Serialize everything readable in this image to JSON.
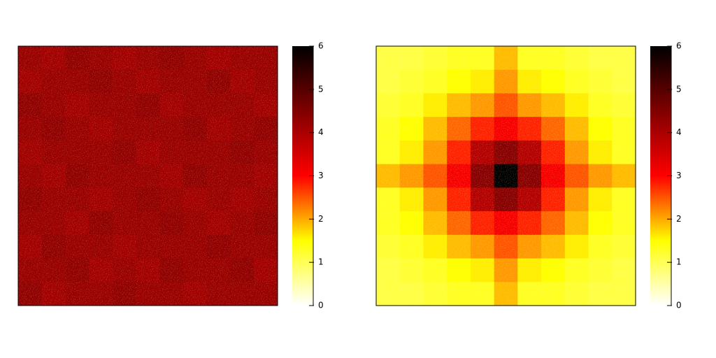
{
  "chart_data": [
    {
      "type": "heatmap",
      "clim": [
        0,
        6
      ],
      "cticks": [
        0,
        1,
        2,
        3,
        4,
        5,
        6
      ],
      "colormap": [
        "#ffffff",
        "#ffff00",
        "#ff0000",
        "#800000",
        "#000000"
      ],
      "values": [
        [
          4.2,
          4.1,
          4.3,
          4.2,
          4.1,
          4.2,
          4.3,
          4.2,
          4.1,
          4.2,
          4.2
        ],
        [
          4.1,
          4.2,
          4.2,
          4.3,
          4.2,
          4.1,
          4.2,
          4.2,
          4.3,
          4.1,
          4.2
        ],
        [
          4.3,
          4.2,
          4.1,
          4.2,
          4.2,
          4.3,
          4.1,
          4.2,
          4.2,
          4.2,
          4.1
        ],
        [
          4.2,
          4.3,
          4.2,
          4.1,
          4.2,
          4.2,
          4.2,
          4.3,
          4.1,
          4.2,
          4.3
        ],
        [
          4.1,
          4.2,
          4.2,
          4.2,
          4.3,
          4.1,
          4.2,
          4.2,
          4.2,
          4.3,
          4.2
        ],
        [
          4.2,
          4.1,
          4.3,
          4.2,
          4.2,
          4.2,
          4.1,
          4.3,
          4.2,
          4.2,
          4.1
        ],
        [
          4.3,
          4.2,
          4.2,
          4.1,
          4.2,
          4.3,
          4.2,
          4.1,
          4.2,
          4.1,
          4.2
        ],
        [
          4.2,
          4.2,
          4.1,
          4.3,
          4.2,
          4.2,
          4.3,
          4.2,
          4.1,
          4.2,
          4.3
        ],
        [
          4.1,
          4.3,
          4.2,
          4.2,
          4.1,
          4.2,
          4.2,
          4.2,
          4.3,
          4.2,
          4.2
        ],
        [
          4.2,
          4.2,
          4.3,
          4.1,
          4.2,
          4.1,
          4.3,
          4.2,
          4.2,
          4.3,
          4.1
        ],
        [
          4.3,
          4.1,
          4.2,
          4.2,
          4.3,
          4.2,
          4.2,
          4.1,
          4.2,
          4.2,
          4.2
        ]
      ]
    },
    {
      "type": "heatmap",
      "clim": [
        0,
        6
      ],
      "cticks": [
        0,
        1,
        2,
        3,
        4,
        5,
        6
      ],
      "colormap": [
        "#ffffff",
        "#ffff00",
        "#ff0000",
        "#800000",
        "#000000"
      ],
      "values": [
        [
          1.1,
          1.1,
          1.2,
          1.3,
          1.3,
          1.9,
          1.3,
          1.3,
          1.2,
          1.1,
          1.1
        ],
        [
          1.1,
          1.2,
          1.3,
          1.5,
          1.6,
          2.1,
          1.6,
          1.5,
          1.3,
          1.2,
          1.1
        ],
        [
          1.2,
          1.3,
          1.6,
          1.9,
          2.1,
          2.5,
          2.1,
          1.9,
          1.6,
          1.3,
          1.2
        ],
        [
          1.3,
          1.5,
          1.9,
          2.4,
          2.8,
          3.1,
          2.8,
          2.4,
          1.9,
          1.5,
          1.3
        ],
        [
          1.3,
          1.6,
          2.1,
          2.8,
          3.9,
          4.4,
          3.9,
          2.8,
          2.1,
          1.6,
          1.3
        ],
        [
          1.9,
          2.1,
          2.5,
          3.1,
          4.4,
          6,
          4.4,
          3.1,
          2.5,
          2.1,
          1.9
        ],
        [
          1.3,
          1.6,
          2.1,
          2.8,
          3.9,
          4.4,
          3.9,
          2.8,
          2.1,
          1.6,
          1.3
        ],
        [
          1.3,
          1.5,
          1.9,
          2.4,
          2.8,
          3.1,
          2.8,
          2.4,
          1.9,
          1.5,
          1.3
        ],
        [
          1.2,
          1.3,
          1.6,
          1.9,
          2.1,
          2.5,
          2.1,
          1.9,
          1.6,
          1.3,
          1.2
        ],
        [
          1.1,
          1.2,
          1.3,
          1.5,
          1.6,
          2.1,
          1.6,
          1.5,
          1.3,
          1.2,
          1.1
        ],
        [
          1.1,
          1.1,
          1.2,
          1.3,
          1.3,
          1.9,
          1.3,
          1.3,
          1.2,
          1.1,
          1.1
        ]
      ]
    }
  ]
}
